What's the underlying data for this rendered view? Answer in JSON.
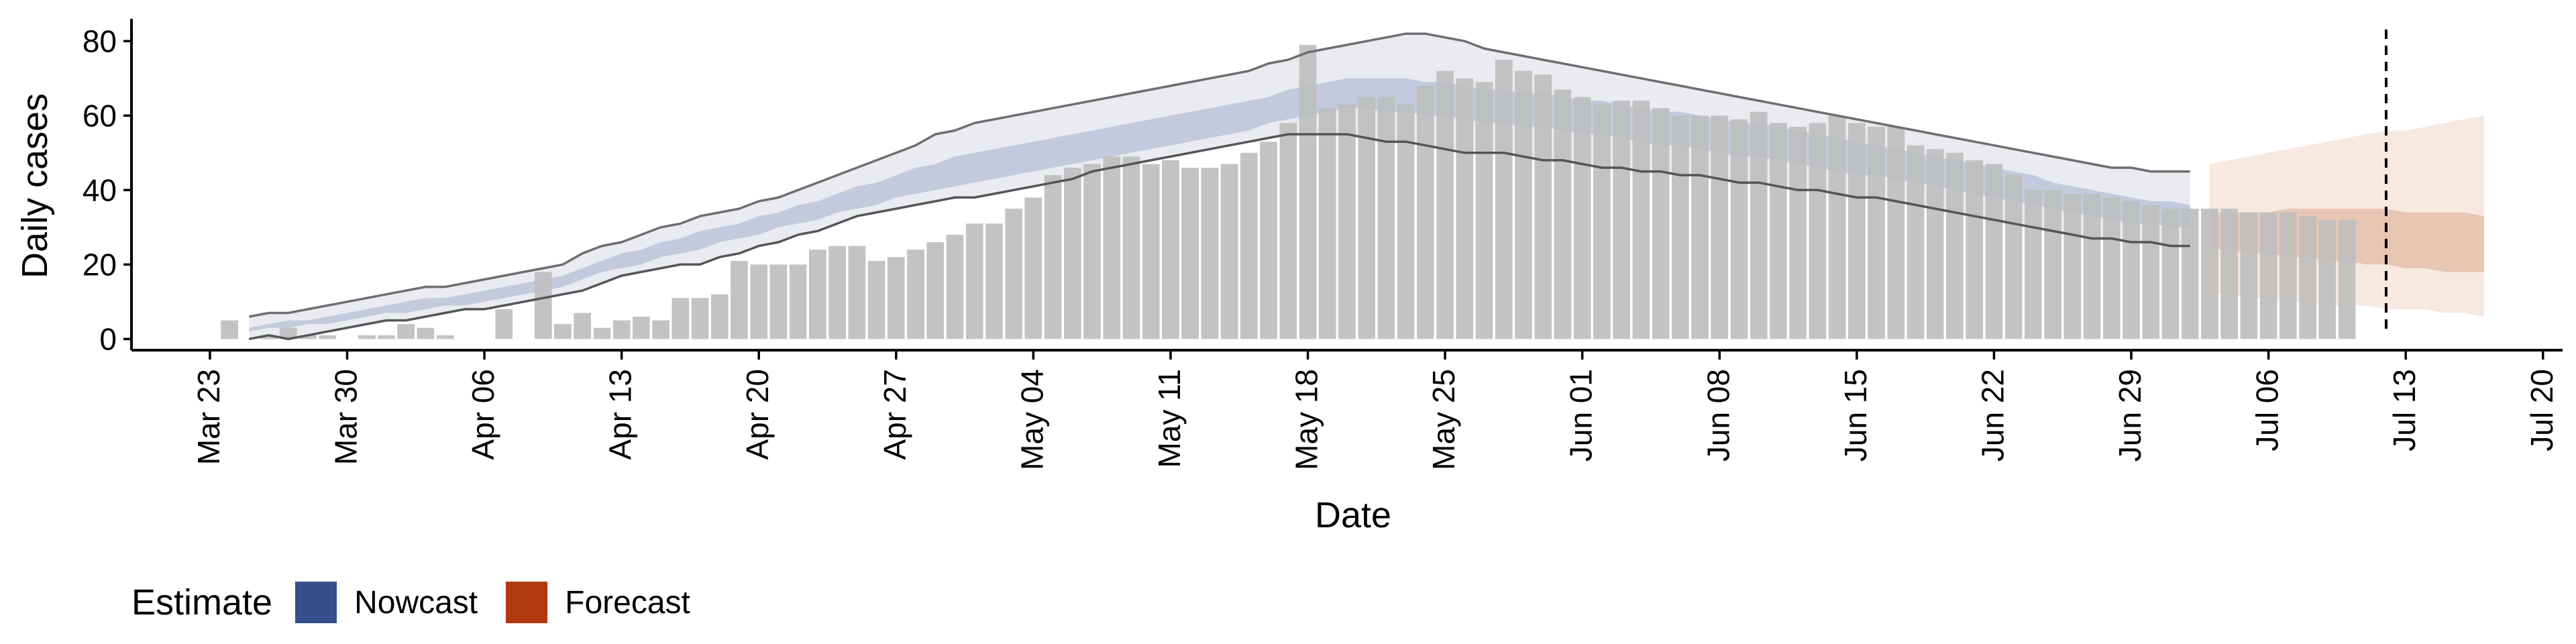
{
  "chart_data": {
    "type": "bar",
    "title": "",
    "xlabel": "Date",
    "ylabel": "Daily cases",
    "ylim": [
      -3,
      86
    ],
    "yticks": [
      0,
      20,
      40,
      60,
      80
    ],
    "xlim": [
      "2020-03-19",
      "2020-07-21"
    ],
    "xticks": [
      "2020-03-23",
      "2020-03-30",
      "2020-04-06",
      "2020-04-13",
      "2020-04-20",
      "2020-04-27",
      "2020-05-04",
      "2020-05-11",
      "2020-05-18",
      "2020-05-25",
      "2020-06-01",
      "2020-06-08",
      "2020-06-15",
      "2020-06-22",
      "2020-06-29",
      "2020-07-06",
      "2020-07-13",
      "2020-07-20"
    ],
    "xticklabels": [
      "Mar 23",
      "Mar 30",
      "Apr 06",
      "Apr 13",
      "Apr 20",
      "Apr 27",
      "May 04",
      "May 11",
      "May 18",
      "May 25",
      "Jun 01",
      "Jun 08",
      "Jun 15",
      "Jun 22",
      "Jun 29",
      "Jul 06",
      "Jul 13",
      "Jul 20"
    ],
    "reference_line_date": "2020-07-12",
    "grid": false,
    "legend": {
      "title": "Estimate",
      "position": "bottom-left",
      "entries": [
        {
          "label": "Nowcast",
          "color": "#374f8a"
        },
        {
          "label": "Forecast",
          "color": "#b23a10"
        }
      ]
    },
    "series": [
      {
        "kind": "bars",
        "color": "#bebebe",
        "start_date": "2020-03-24",
        "values": [
          5,
          0,
          1,
          3,
          1,
          1,
          0,
          1,
          1,
          4,
          3,
          1,
          0,
          0,
          8,
          0,
          18,
          4,
          7,
          3,
          5,
          6,
          5,
          11,
          11,
          12,
          21,
          20,
          20,
          20,
          24,
          25,
          25,
          21,
          22,
          24,
          26,
          28,
          31,
          31,
          35,
          38,
          44,
          46,
          47,
          49,
          49,
          47,
          48,
          46,
          46,
          47,
          50,
          53,
          58,
          79,
          62,
          63,
          65,
          65,
          63,
          68,
          72,
          70,
          69,
          75,
          72,
          71,
          67,
          65,
          63,
          64,
          64,
          62,
          60,
          60,
          60,
          59,
          61,
          58,
          57,
          58,
          60,
          58,
          57,
          57,
          52,
          51,
          50,
          48,
          47,
          44,
          40,
          40,
          39,
          39,
          38,
          37,
          36,
          35,
          35,
          35,
          35,
          34,
          34,
          34,
          33,
          32,
          32
        ]
      },
      {
        "kind": "band_outer",
        "estimate": "Nowcast",
        "color": "#e9ebf1",
        "start_date": "2020-03-25",
        "lower": [
          0,
          1,
          0,
          1,
          2,
          3,
          4,
          5,
          5,
          6,
          7,
          8,
          8,
          9,
          10,
          11,
          12,
          13,
          15,
          17,
          18,
          19,
          20,
          20,
          22,
          23,
          25,
          26,
          28,
          29,
          31,
          33,
          34,
          35,
          36,
          37,
          38,
          38,
          39,
          40,
          41,
          42,
          43,
          45,
          46,
          47,
          48,
          49,
          50,
          51,
          52,
          53,
          54,
          55,
          55,
          55,
          55,
          54,
          53,
          53,
          52,
          51,
          50,
          50,
          50,
          49,
          48,
          48,
          47,
          46,
          46,
          45,
          45,
          44,
          44,
          43,
          42,
          42,
          41,
          40,
          40,
          39,
          38,
          38,
          37,
          36,
          35,
          34,
          33,
          32,
          31,
          30,
          29,
          28,
          27,
          27,
          26,
          26,
          25,
          25
        ],
        "upper": [
          6,
          7,
          7,
          8,
          9,
          10,
          11,
          12,
          13,
          14,
          14,
          15,
          16,
          17,
          18,
          19,
          20,
          23,
          25,
          26,
          28,
          30,
          31,
          33,
          34,
          35,
          37,
          38,
          40,
          42,
          44,
          46,
          48,
          50,
          52,
          55,
          56,
          58,
          59,
          60,
          61,
          62,
          63,
          64,
          65,
          66,
          67,
          68,
          69,
          70,
          71,
          72,
          74,
          75,
          77,
          78,
          79,
          80,
          81,
          82,
          82,
          81,
          80,
          78,
          77,
          76,
          75,
          74,
          73,
          72,
          71,
          70,
          69,
          68,
          67,
          66,
          65,
          64,
          63,
          62,
          61,
          60,
          59,
          58,
          57,
          56,
          55,
          54,
          53,
          52,
          51,
          50,
          49,
          48,
          47,
          46,
          46,
          45,
          45,
          45
        ]
      },
      {
        "kind": "band_inner",
        "estimate": "Nowcast",
        "color": "#c3cadd",
        "start_date": "2020-03-25",
        "lower": [
          2,
          3,
          3,
          4,
          4,
          5,
          6,
          7,
          7,
          8,
          9,
          9,
          10,
          11,
          12,
          13,
          14,
          16,
          18,
          19,
          20,
          22,
          23,
          24,
          26,
          27,
          28,
          30,
          31,
          32,
          34,
          35,
          36,
          38,
          39,
          40,
          41,
          42,
          43,
          44,
          45,
          46,
          47,
          48,
          49,
          50,
          51,
          52,
          53,
          54,
          55,
          56,
          58,
          59,
          60,
          61,
          62,
          62,
          61,
          61,
          60,
          60,
          59,
          58,
          58,
          57,
          57,
          56,
          55,
          55,
          54,
          53,
          52,
          52,
          51,
          50,
          49,
          49,
          48,
          47,
          46,
          45,
          44,
          44,
          43,
          42,
          41,
          40,
          39,
          38,
          37,
          36,
          35,
          34,
          33,
          32,
          31,
          31,
          30,
          30
        ],
        "upper": [
          3,
          4,
          5,
          5,
          6,
          7,
          8,
          9,
          10,
          11,
          11,
          12,
          13,
          14,
          15,
          16,
          17,
          19,
          21,
          23,
          24,
          26,
          27,
          29,
          30,
          31,
          33,
          34,
          36,
          37,
          39,
          41,
          42,
          44,
          46,
          47,
          49,
          50,
          51,
          52,
          53,
          54,
          55,
          56,
          57,
          58,
          59,
          60,
          61,
          62,
          63,
          64,
          65,
          67,
          68,
          69,
          70,
          70,
          70,
          70,
          69,
          69,
          68,
          67,
          67,
          66,
          66,
          65,
          64,
          64,
          63,
          62,
          61,
          61,
          60,
          59,
          58,
          58,
          57,
          56,
          55,
          54,
          53,
          52,
          51,
          50,
          49,
          48,
          47,
          46,
          45,
          44,
          42,
          41,
          40,
          39,
          38,
          37,
          37,
          36
        ]
      },
      {
        "kind": "band_outer",
        "estimate": "Forecast",
        "color": "#f6e4da",
        "start_date": "2020-07-03",
        "lower": [
          12,
          12,
          11,
          11,
          10,
          10,
          9,
          9,
          9,
          8,
          8,
          8,
          7,
          7,
          6
        ],
        "upper": [
          47,
          48,
          49,
          50,
          51,
          52,
          53,
          54,
          55,
          56,
          56,
          57,
          58,
          59,
          60
        ]
      },
      {
        "kind": "band_inner",
        "estimate": "Forecast",
        "color": "#e5c0ac",
        "start_date": "2020-07-03",
        "lower": [
          24,
          24,
          23,
          23,
          22,
          22,
          21,
          21,
          20,
          20,
          19,
          19,
          18,
          18,
          18
        ],
        "upper": [
          34,
          34,
          34,
          34,
          35,
          35,
          35,
          35,
          35,
          35,
          34,
          34,
          34,
          34,
          33
        ]
      }
    ]
  },
  "legend": {
    "title": "Estimate",
    "items": [
      {
        "label": "Nowcast",
        "color": "#374f8a"
      },
      {
        "label": "Forecast",
        "color": "#b23a10"
      }
    ]
  }
}
